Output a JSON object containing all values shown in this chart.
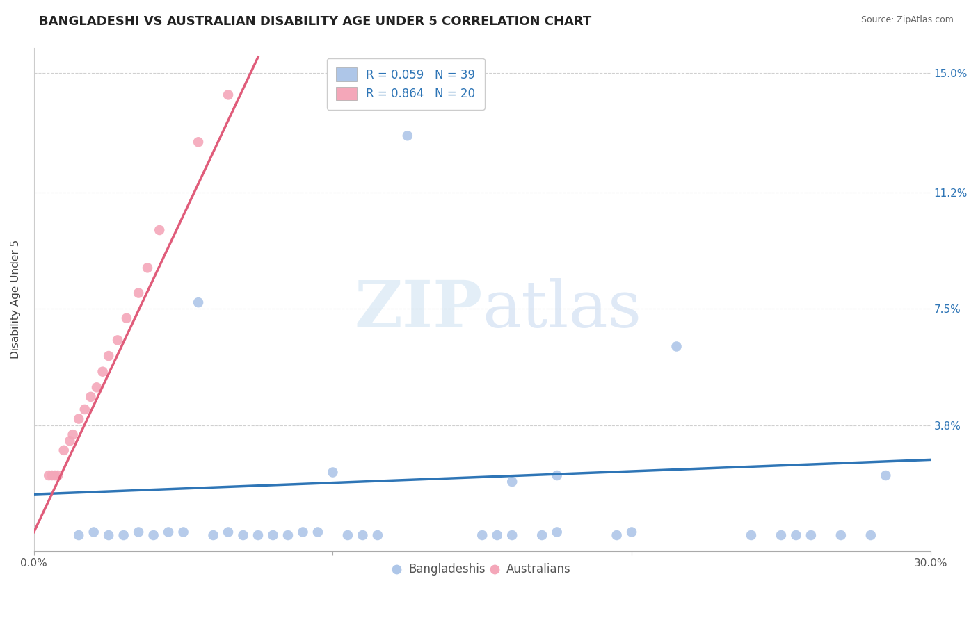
{
  "title": "BANGLADESHI VS AUSTRALIAN DISABILITY AGE UNDER 5 CORRELATION CHART",
  "source_text": "Source: ZipAtlas.com",
  "ylabel": "Disability Age Under 5",
  "xlim": [
    0.0,
    0.3
  ],
  "ylim": [
    -0.002,
    0.158
  ],
  "xticks": [
    0.0,
    0.1,
    0.2,
    0.3
  ],
  "xtick_labels": [
    "0.0%",
    "",
    "",
    "30.0%"
  ],
  "yticks": [
    0.038,
    0.075,
    0.112,
    0.15
  ],
  "ytick_labels": [
    "3.8%",
    "7.5%",
    "11.2%",
    "15.0%"
  ],
  "legend_entries": [
    {
      "label": "R = 0.059   N = 39",
      "color": "#aec6e8"
    },
    {
      "label": "R = 0.864   N = 20",
      "color": "#f4a7b9"
    }
  ],
  "legend_labels_bottom": [
    "Bangladeshis",
    "Australians"
  ],
  "blue_scatter_x": [
    0.055,
    0.125,
    0.215,
    0.015,
    0.02,
    0.025,
    0.03,
    0.035,
    0.04,
    0.045,
    0.05,
    0.06,
    0.065,
    0.07,
    0.075,
    0.08,
    0.085,
    0.09,
    0.095,
    0.1,
    0.105,
    0.11,
    0.115,
    0.15,
    0.155,
    0.16,
    0.17,
    0.175,
    0.195,
    0.2,
    0.25,
    0.255,
    0.26,
    0.27,
    0.28,
    0.175,
    0.16,
    0.24,
    0.285
  ],
  "blue_scatter_y": [
    0.077,
    0.13,
    0.063,
    0.003,
    0.004,
    0.003,
    0.003,
    0.004,
    0.003,
    0.004,
    0.004,
    0.003,
    0.004,
    0.003,
    0.003,
    0.003,
    0.003,
    0.004,
    0.004,
    0.023,
    0.003,
    0.003,
    0.003,
    0.003,
    0.003,
    0.003,
    0.003,
    0.004,
    0.003,
    0.004,
    0.003,
    0.003,
    0.003,
    0.003,
    0.003,
    0.022,
    0.02,
    0.003,
    0.022
  ],
  "pink_scatter_x": [
    0.005,
    0.006,
    0.007,
    0.008,
    0.01,
    0.012,
    0.013,
    0.015,
    0.017,
    0.019,
    0.021,
    0.023,
    0.025,
    0.028,
    0.031,
    0.035,
    0.038,
    0.042,
    0.055,
    0.065
  ],
  "pink_scatter_y": [
    0.022,
    0.022,
    0.022,
    0.022,
    0.03,
    0.033,
    0.035,
    0.04,
    0.043,
    0.047,
    0.05,
    0.055,
    0.06,
    0.065,
    0.072,
    0.08,
    0.088,
    0.1,
    0.128,
    0.143
  ],
  "blue_line_x": [
    0.0,
    0.3
  ],
  "blue_line_y": [
    0.016,
    0.027
  ],
  "pink_line_x": [
    0.0,
    0.075
  ],
  "pink_line_y": [
    0.004,
    0.155
  ],
  "dot_size": 110,
  "blue_dot_color": "#aec6e8",
  "pink_dot_color": "#f4a7b9",
  "blue_line_color": "#2e75b6",
  "pink_line_color": "#e05c7a",
  "grid_color": "#d0d0d0",
  "background_color": "#ffffff",
  "watermark_zip": "ZIP",
  "watermark_atlas": "atlas",
  "title_fontsize": 13,
  "axis_label_fontsize": 11,
  "tick_fontsize": 11,
  "legend_fontsize": 12
}
